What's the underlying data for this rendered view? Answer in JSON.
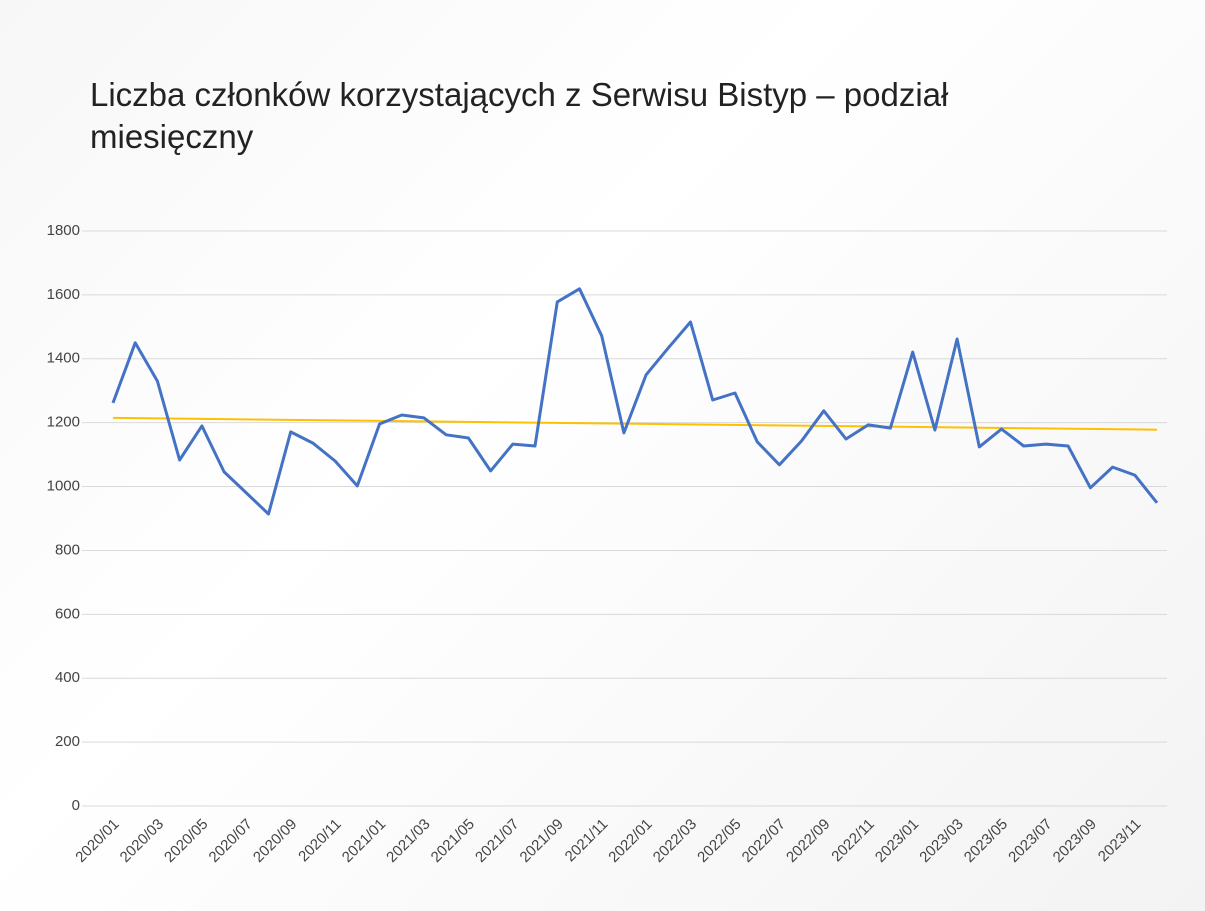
{
  "chart_data": {
    "type": "line",
    "title": "Liczba członków korzystających z Serwisu Bistyp – podział miesięczny",
    "categories": [
      "2020/01",
      null,
      "2020/03",
      null,
      "2020/05",
      null,
      "2020/07",
      null,
      "2020/09",
      null,
      "2020/11",
      null,
      "2021/01",
      null,
      "2021/03",
      null,
      "2021/05",
      null,
      "2021/07",
      null,
      "2021/09",
      null,
      "2021/11",
      null,
      "2022/01",
      null,
      "2022/03",
      null,
      "2022/05",
      null,
      "2022/07",
      null,
      "2022/09",
      null,
      "2022/11",
      null,
      "2023/01",
      null,
      "2023/03",
      null,
      "2023/05",
      null,
      "2023/07",
      null,
      "2023/09",
      null,
      "2023/11",
      null
    ],
    "series": [
      {
        "color": "#4472c4",
        "values": [
          1262,
          1450,
          1330,
          1083,
          1190,
          1046,
          980,
          914,
          1171,
          1136,
          1080,
          1002,
          1196,
          1224,
          1215,
          1162,
          1152,
          1049,
          1133,
          1127,
          1578,
          1619,
          1472,
          1168,
          1350,
          1434,
          1515,
          1271,
          1293,
          1140,
          1068,
          1143,
          1237,
          1149,
          1193,
          1183,
          1421,
          1177,
          1462,
          1124,
          1180,
          1127,
          1133,
          1127,
          996,
          1061,
          1036,
          949
        ]
      }
    ],
    "trendline": {
      "color": "#ffc000",
      "start": 1215,
      "end": 1178
    },
    "ylim": [
      0,
      1800
    ],
    "yticks": [
      0,
      200,
      400,
      600,
      800,
      1000,
      1200,
      1400,
      1600,
      1800
    ],
    "grid": true
  }
}
